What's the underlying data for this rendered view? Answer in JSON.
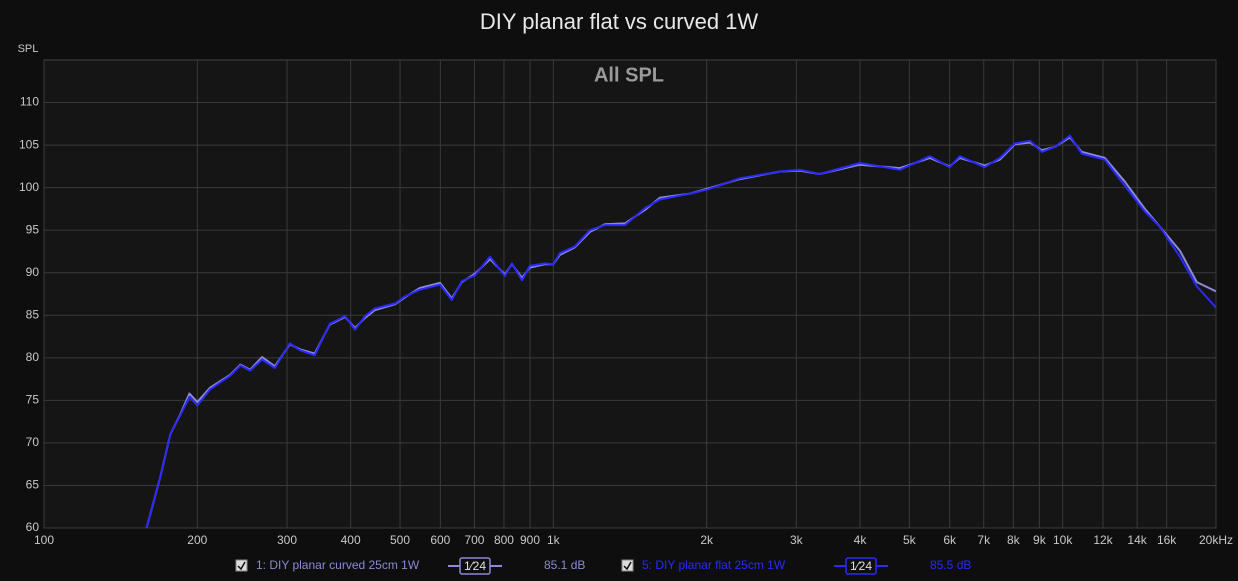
{
  "chart_data": {
    "type": "line",
    "title": "DIY planar flat vs curved 1W",
    "y_label": "SPL",
    "annotation": "All SPL",
    "log_x": true,
    "grid": true,
    "xlim": [
      100,
      20000
    ],
    "ylim": [
      60,
      115
    ],
    "yticks": [
      60,
      65,
      70,
      75,
      80,
      85,
      90,
      95,
      100,
      105,
      110
    ],
    "xticks": [
      100,
      200,
      300,
      400,
      500,
      600,
      700,
      800,
      900,
      {
        "value": 1000,
        "label": "1k"
      },
      {
        "value": 2000,
        "label": "2k"
      },
      {
        "value": 3000,
        "label": "3k"
      },
      {
        "value": 4000,
        "label": "4k"
      },
      {
        "value": 5000,
        "label": "5k"
      },
      {
        "value": 6000,
        "label": "6k"
      },
      {
        "value": 7000,
        "label": "7k"
      },
      {
        "value": 8000,
        "label": "8k"
      },
      {
        "value": 9000,
        "label": "9k"
      },
      {
        "value": 10000,
        "label": "10k"
      },
      {
        "value": 12000,
        "label": "12k"
      },
      {
        "value": 14000,
        "label": "14k"
      },
      {
        "value": 16000,
        "label": "16k"
      },
      {
        "value": 20000,
        "label": "20kHz"
      }
    ],
    "x": [
      159,
      169,
      177,
      185,
      193,
      200,
      212,
      232,
      243,
      254,
      268,
      284,
      304,
      318,
      340,
      364,
      390,
      408,
      427,
      446,
      489,
      511,
      547,
      599,
      632,
      661,
      702,
      751,
      803,
      829,
      868,
      899,
      963,
      1000,
      1030,
      1103,
      1180,
      1263,
      1382,
      1514,
      1618,
      1854,
      2012,
      2323,
      2786,
      3048,
      3334,
      3999,
      4790,
      5487,
      6000,
      6280,
      7030,
      7530,
      8060,
      8630,
      9100,
      9660,
      10330,
      10900,
      12100,
      13250,
      14500,
      15520,
      16990,
      18340,
      20000
    ],
    "series": [
      {
        "name": "1: DIY planar curved 25cm 1W",
        "smoothing": "1⁄24",
        "level": "85.1 dB",
        "color": "#8a8ad6",
        "values": [
          60,
          65.9,
          71,
          73.3,
          75.8,
          74.8,
          76.5,
          78,
          79.2,
          78.6,
          80.1,
          79,
          81.6,
          81,
          80.5,
          83.9,
          84.8,
          83.5,
          84.7,
          85.6,
          86.3,
          87.1,
          88.2,
          88.8,
          87,
          88.9,
          89.9,
          91.6,
          89.8,
          91,
          89.4,
          90.6,
          91,
          91,
          92.1,
          93,
          94.8,
          95.7,
          95.8,
          97.4,
          98.8,
          99.3,
          99.9,
          101,
          101.9,
          102,
          101.6,
          102.7,
          102.3,
          103.5,
          102.5,
          103.5,
          102.6,
          103.3,
          105.1,
          105.3,
          104.4,
          104.8,
          105.9,
          104.2,
          103.5,
          100.7,
          97.5,
          95.4,
          92.6,
          88.9,
          87.8
        ]
      },
      {
        "name": "5: DIY planar flat 25cm 1W",
        "smoothing": "1⁄24",
        "level": "85.5 dB",
        "color": "#2a2aff",
        "values": [
          60,
          65.9,
          71,
          73.2,
          75.4,
          74.4,
          76.3,
          77.9,
          79.1,
          78.5,
          79.8,
          78.8,
          81.7,
          80.9,
          80.3,
          84,
          84.9,
          83.3,
          84.9,
          85.8,
          86.4,
          87.2,
          88,
          88.6,
          86.8,
          89,
          89.7,
          91.9,
          89.6,
          91.1,
          89.1,
          90.8,
          91.1,
          91,
          92.3,
          93.1,
          95,
          95.6,
          95.6,
          97.6,
          98.6,
          99.3,
          99.8,
          101.1,
          101.9,
          102.1,
          101.6,
          102.9,
          102.1,
          103.7,
          102.4,
          103.7,
          102.4,
          103.5,
          105.2,
          105.5,
          104.2,
          104.8,
          106.1,
          104,
          103.3,
          100.2,
          97.2,
          95.4,
          91.9,
          88.4,
          85.9
        ]
      }
    ]
  }
}
